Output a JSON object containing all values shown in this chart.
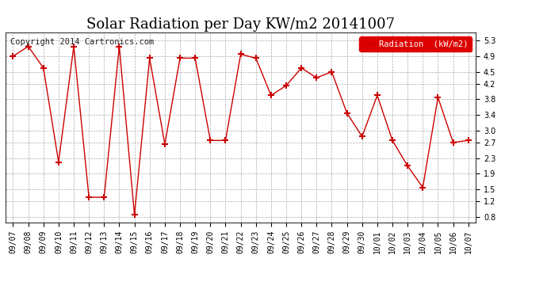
{
  "title": "Solar Radiation per Day KW/m2 20141007",
  "copyright_text": "Copyright 2014 Cartronics.com",
  "legend_label": "Radiation  (kW/m2)",
  "dates": [
    "09/07",
    "09/08",
    "09/09",
    "09/10",
    "09/11",
    "09/12",
    "09/13",
    "09/14",
    "09/15",
    "09/16",
    "09/17",
    "09/18",
    "09/19",
    "09/20",
    "09/21",
    "09/22",
    "09/23",
    "09/24",
    "09/25",
    "09/26",
    "09/27",
    "09/28",
    "09/29",
    "09/30",
    "10/01",
    "10/02",
    "10/03",
    "10/04",
    "10/05",
    "10/06",
    "10/07"
  ],
  "values": [
    4.9,
    5.15,
    4.6,
    2.2,
    5.15,
    1.3,
    1.3,
    5.15,
    0.85,
    4.85,
    2.65,
    4.85,
    4.85,
    2.75,
    2.75,
    4.95,
    4.85,
    3.9,
    4.15,
    4.6,
    4.35,
    4.5,
    3.45,
    2.85,
    3.9,
    2.75,
    2.1,
    1.55,
    3.85,
    2.7,
    2.75
  ],
  "line_color": "#cc0000",
  "marker": "+",
  "marker_size": 6,
  "marker_color": "#cc0000",
  "ylim": [
    0.65,
    5.5
  ],
  "yticks": [
    0.8,
    1.2,
    1.5,
    1.9,
    2.3,
    2.7,
    3.0,
    3.4,
    3.8,
    4.2,
    4.5,
    4.9,
    5.3
  ],
  "grid_color": "#aaaaaa",
  "background_color": "#ffffff",
  "plot_bg_color": "#ffffff",
  "legend_bg_color": "#dd0000",
  "legend_text_color": "#ffffff",
  "title_fontsize": 13,
  "tick_fontsize": 7,
  "copyright_fontsize": 7.5
}
